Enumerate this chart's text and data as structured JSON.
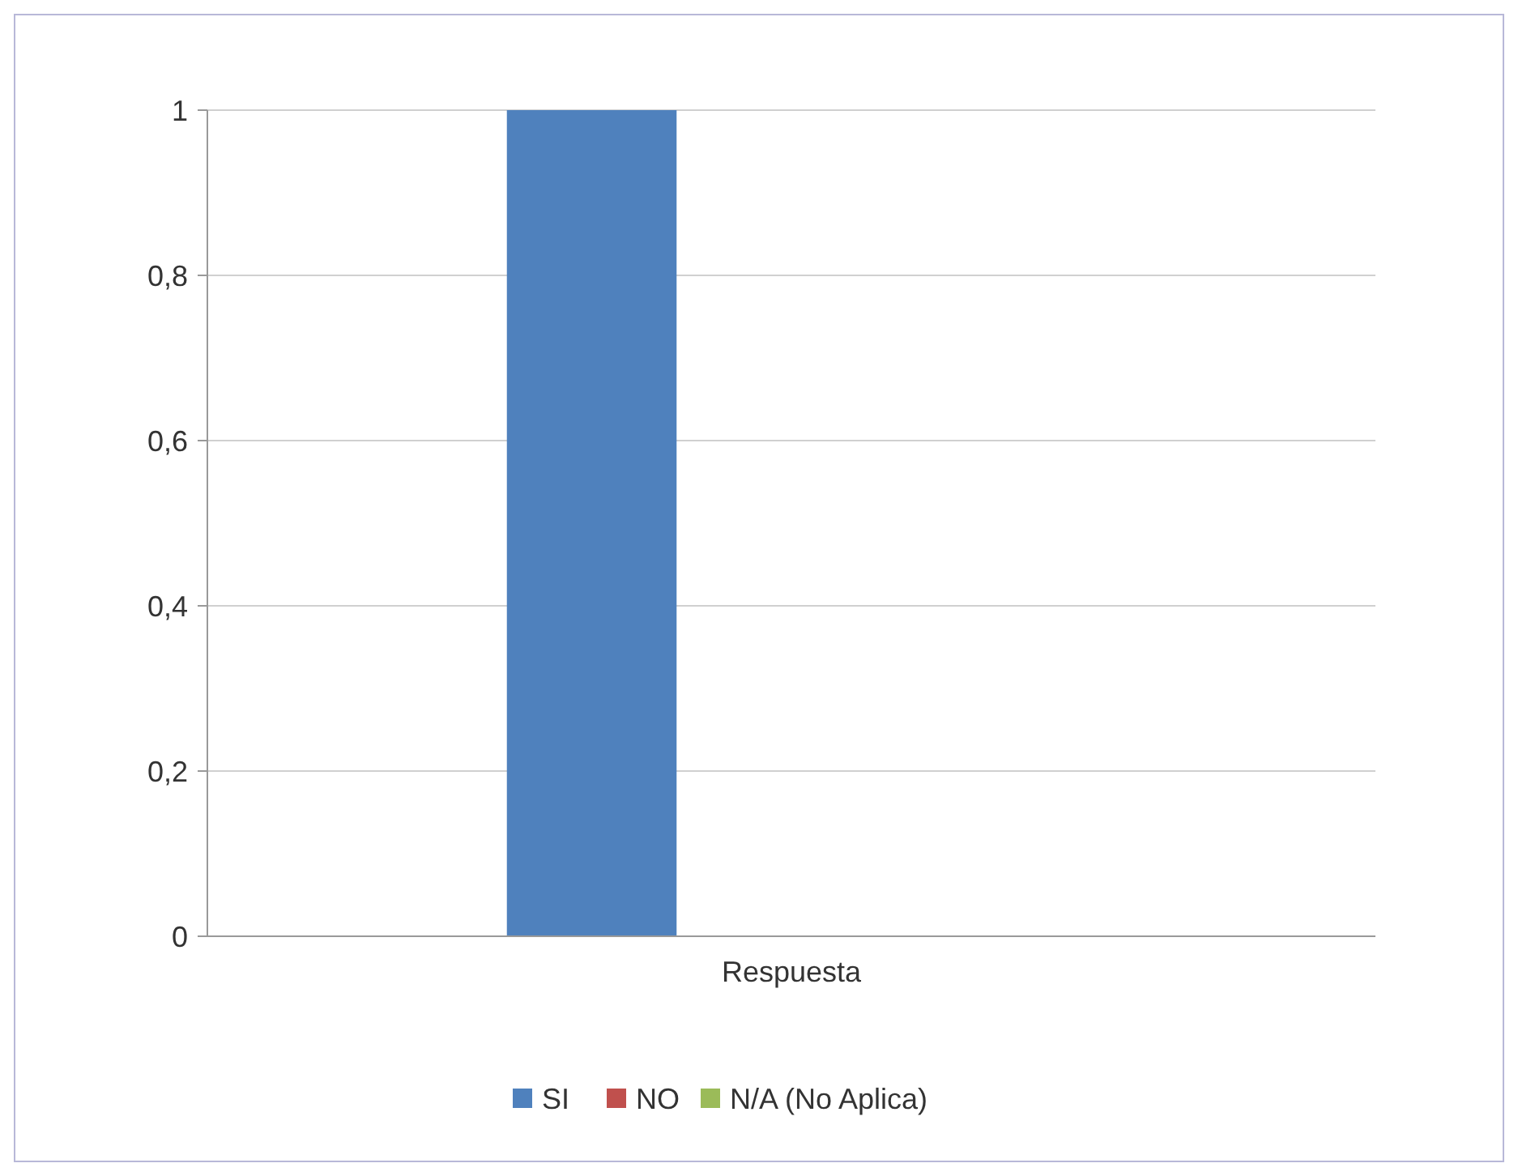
{
  "chart_data": {
    "type": "bar",
    "categories": [
      "Respuesta"
    ],
    "series": [
      {
        "name": "SI",
        "color": "#4f81bd",
        "values": [
          1
        ]
      },
      {
        "name": "NO",
        "color": "#c0504d",
        "values": [
          0
        ]
      },
      {
        "name": "N/A (No Aplica)",
        "color": "#9bbb59",
        "values": [
          0
        ]
      }
    ],
    "ylim": [
      0,
      1
    ],
    "yticks": [
      0,
      {
        "value": 0.2,
        "label": "0,2"
      },
      {
        "value": 0.4,
        "label": "0,4"
      },
      {
        "value": 0.6,
        "label": "0,6"
      },
      {
        "value": 0.8,
        "label": "0,8"
      },
      1
    ],
    "grid": "y",
    "legend": "bottom"
  }
}
